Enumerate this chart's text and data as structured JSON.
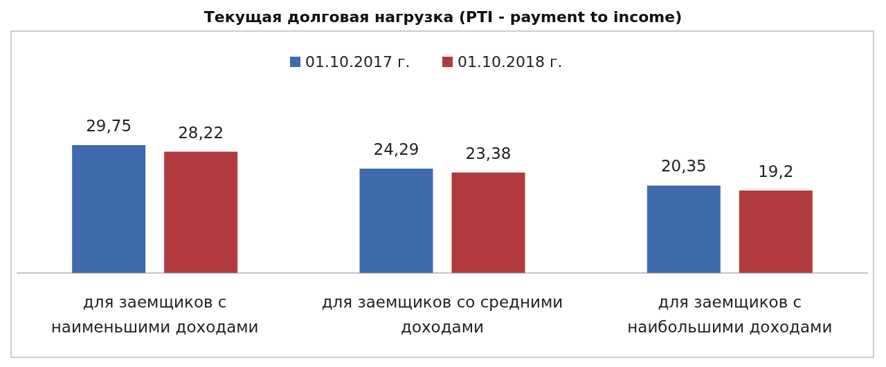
{
  "chart_data": {
    "type": "bar",
    "title": "Текущая долговая нагрузка (PTI - payment to income)",
    "categories": [
      "для заемщиков с наименьшими доходами",
      "для заемщиков со средними доходами",
      "для заемщиков с наибольшими доходами"
    ],
    "series": [
      {
        "name": "01.10.2017 г.",
        "color": "#3f6aad",
        "values": [
          29.75,
          24.29,
          20.35
        ],
        "value_labels": [
          "29,75",
          "24,29",
          "20,35"
        ]
      },
      {
        "name": "01.10.2018 г.",
        "color": "#b13a3e",
        "values": [
          28.22,
          23.38,
          19.2
        ],
        "value_labels": [
          "28,22",
          "23,38",
          "19,2"
        ]
      }
    ],
    "legend": "top"
  }
}
